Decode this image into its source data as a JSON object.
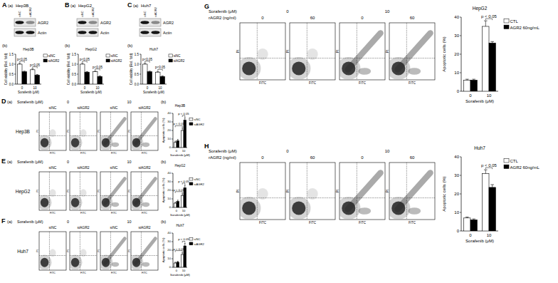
{
  "chart_data": [
    {
      "type": "bar",
      "title": "Hep3B",
      "x_label": "Sorafenib (μM)",
      "y_label": "Cell viability (Rel. fold)",
      "categories": [
        "0",
        "10"
      ],
      "series": [
        {
          "name": "siNC",
          "color": "#ffffff",
          "values": [
            1.0,
            0.72
          ],
          "errors": [
            0.04,
            0.04
          ]
        },
        {
          "name": "siAGR2",
          "color": "#000000",
          "values": [
            0.62,
            0.45
          ],
          "errors": [
            0.03,
            0.03
          ]
        }
      ],
      "ylim": [
        0,
        1.5
      ],
      "yticks": [
        {
          "value": 0,
          "label": "0.0"
        },
        0.5,
        {
          "value": 1,
          "label": "1.0"
        },
        1.5
      ],
      "annotations": [
        {
          "text": "p<0.05",
          "a": [
            "0",
            "siNC"
          ],
          "b": [
            "0",
            "siAGR2"
          ]
        },
        {
          "text": "p<0.05",
          "a": [
            "10",
            "siNC"
          ],
          "b": [
            "10",
            "siAGR2"
          ]
        }
      ]
    },
    {
      "type": "bar",
      "title": "HepG2",
      "x_label": "Sorafenib (μM)",
      "y_label": "Cell viability (Rel. fold)",
      "categories": [
        "0",
        "10"
      ],
      "series": [
        {
          "name": "siNC",
          "color": "#ffffff",
          "values": [
            1.0,
            0.62
          ],
          "errors": [
            0.04,
            0.03
          ]
        },
        {
          "name": "siAGR2",
          "color": "#000000",
          "values": [
            0.6,
            0.38
          ],
          "errors": [
            0.03,
            0.03
          ]
        }
      ],
      "ylim": [
        0,
        1.5
      ],
      "yticks": [
        {
          "value": 0,
          "label": "0.0"
        },
        0.5,
        {
          "value": 1,
          "label": "1.0"
        },
        1.5
      ],
      "annotations": [
        {
          "text": "p<0.05",
          "a": [
            "0",
            "siNC"
          ],
          "b": [
            "0",
            "siAGR2"
          ]
        },
        {
          "text": "p<0.05",
          "a": [
            "10",
            "siNC"
          ],
          "b": [
            "10",
            "siAGR2"
          ]
        }
      ]
    },
    {
      "type": "bar",
      "title": "Huh7",
      "x_label": "Sorafenib (μM)",
      "y_label": "Cell viability (Rel. fold)",
      "categories": [
        "0",
        "10"
      ],
      "series": [
        {
          "name": "siNC",
          "color": "#ffffff",
          "values": [
            1.0,
            0.6
          ],
          "errors": [
            0.04,
            0.03
          ]
        },
        {
          "name": "siAGR2",
          "color": "#000000",
          "values": [
            0.62,
            0.38
          ],
          "errors": [
            0.03,
            0.03
          ]
        }
      ],
      "ylim": [
        0,
        1.5
      ],
      "yticks": [
        {
          "value": 0,
          "label": "0.0"
        },
        0.5,
        {
          "value": 1,
          "label": "1.0"
        },
        1.5
      ],
      "annotations": [
        {
          "text": "p<0.05",
          "a": [
            "0",
            "siNC"
          ],
          "b": [
            "0",
            "siAGR2"
          ]
        },
        {
          "text": "p<0.05",
          "a": [
            "10",
            "siNC"
          ],
          "b": [
            "10",
            "siAGR2"
          ]
        }
      ]
    },
    {
      "type": "bar",
      "title": "Hep3B",
      "x_label": "Sorafenib (μM)",
      "y_label": "Apoptotic cells (%)",
      "categories": [
        "0",
        "10"
      ],
      "series": [
        {
          "name": "siNC",
          "color": "#ffffff",
          "values": [
            6,
            20
          ],
          "errors": [
            1.5,
            3
          ]
        },
        {
          "name": "siAGR2",
          "color": "#000000",
          "values": [
            8,
            32
          ],
          "errors": [
            1.5,
            3
          ]
        }
      ],
      "ylim": [
        0,
        40
      ],
      "yticks": [
        0,
        10,
        20,
        30,
        40
      ],
      "annotations": [
        {
          "text": "p < 0.01",
          "a": [
            "0",
            "siNC"
          ],
          "b": [
            "10",
            "siNC"
          ]
        },
        {
          "text": "p < 0.05",
          "a": [
            "10",
            "siNC"
          ],
          "b": [
            "10",
            "siAGR2"
          ]
        }
      ]
    },
    {
      "type": "bar",
      "title": "HepG2",
      "x_label": "Sorafenib (μM)",
      "y_label": "Apoptotic cells (%)",
      "categories": [
        "0",
        "10"
      ],
      "series": [
        {
          "name": "siNC",
          "color": "#ffffff",
          "values": [
            5,
            14
          ],
          "errors": [
            1,
            2
          ]
        },
        {
          "name": "siAGR2",
          "color": "#000000",
          "values": [
            7,
            23
          ],
          "errors": [
            1.5,
            3
          ]
        }
      ],
      "ylim": [
        0,
        40
      ],
      "yticks": [
        0,
        10,
        20,
        30,
        40
      ],
      "annotations": [
        {
          "text": "p < 0.01",
          "a": [
            "0",
            "siNC"
          ],
          "b": [
            "10",
            "siNC"
          ]
        },
        {
          "text": "p < 0.05",
          "a": [
            "10",
            "siNC"
          ],
          "b": [
            "10",
            "siAGR2"
          ]
        }
      ]
    },
    {
      "type": "bar",
      "title": "Huh7",
      "x_label": "Sorafenib (μM)",
      "y_label": "Apoptotic cells (%)",
      "categories": [
        "0",
        "10"
      ],
      "series": [
        {
          "name": "siNC",
          "color": "#ffffff",
          "values": [
            5,
            15
          ],
          "errors": [
            1,
            2
          ]
        },
        {
          "name": "siAGR2",
          "color": "#000000",
          "values": [
            6,
            25
          ],
          "errors": [
            1,
            3
          ]
        }
      ],
      "ylim": [
        0,
        40
      ],
      "yticks": [
        0,
        10,
        20,
        30,
        40
      ],
      "annotations": [
        {
          "text": "p < 0.01",
          "a": [
            "0",
            "siNC"
          ],
          "b": [
            "10",
            "siNC"
          ]
        },
        {
          "text": "p < 0.05",
          "a": [
            "10",
            "siNC"
          ],
          "b": [
            "10",
            "siAGR2"
          ]
        }
      ]
    },
    {
      "type": "bar",
      "title": "HepG2",
      "x_label": "Sorafenib (μM)",
      "y_label": "Apoptotic cells (%)",
      "categories": [
        "0",
        "10"
      ],
      "series": [
        {
          "name": "CTL",
          "color": "#ffffff",
          "values": [
            6,
            35
          ],
          "errors": [
            0.5,
            3
          ]
        },
        {
          "name": "AGR2 60ng/mL",
          "color": "#000000",
          "values": [
            6,
            26
          ],
          "errors": [
            0.5,
            0.8
          ]
        }
      ],
      "ylim": [
        0,
        40
      ],
      "yticks": [
        0,
        10,
        20,
        30,
        40
      ],
      "annotations": [
        {
          "text": "p < 0.05",
          "a": [
            "10",
            "CTL"
          ],
          "b": [
            "10",
            "AGR2 60ng/mL"
          ]
        }
      ]
    },
    {
      "type": "bar",
      "title": "Huh7",
      "x_label": "Sorafenib (μM)",
      "y_label": "Apoptotic cells (%)",
      "categories": [
        "0",
        "10"
      ],
      "series": [
        {
          "name": "CTL",
          "color": "#ffffff",
          "values": [
            7,
            31
          ],
          "errors": [
            0.5,
            2
          ]
        },
        {
          "name": "AGR2 60ng/mL",
          "color": "#000000",
          "values": [
            6,
            23.5
          ],
          "errors": [
            0.5,
            1.5
          ]
        }
      ],
      "ylim": [
        0,
        40
      ],
      "yticks": [
        0,
        10,
        20,
        30,
        40
      ],
      "annotations": [
        {
          "text": "p < 0.05",
          "a": [
            "10",
            "CTL"
          ],
          "b": [
            "10",
            "AGR2 60ng/mL"
          ]
        }
      ]
    }
  ],
  "figure": {
    "blots": [
      {
        "letter": "A",
        "sub": "(a)",
        "cell_line": "Hep3B",
        "lanes": [
          "siNC",
          "siAGR2"
        ],
        "rows": [
          "AGR2",
          "Actin"
        ],
        "chart_sub": "(b)"
      },
      {
        "letter": "B",
        "sub": "(a)",
        "cell_line": "HepG2",
        "lanes": [
          "siNC",
          "siAGR2"
        ],
        "rows": [
          "AGR2",
          "Actin"
        ],
        "chart_sub": "(b)"
      },
      {
        "letter": "C",
        "sub": "(a)",
        "cell_line": "Huh7",
        "lanes": [
          "siNC",
          "siAGR2"
        ],
        "rows": [
          "AGR2",
          "Actin"
        ],
        "chart_sub": "(b)"
      }
    ],
    "flow_rows": [
      {
        "letter": "D",
        "sub": "(a)",
        "chart_sub": "(b)",
        "header": "Sorafenib (μM)",
        "doses": [
          "0",
          "10"
        ],
        "groups": [
          "siNC",
          "siAGR2",
          "siNC",
          "siAGR2"
        ],
        "cell_line": "Hep3B",
        "y_axis": "PI",
        "x_axis": "FITC"
      },
      {
        "letter": "E",
        "sub": "(a)",
        "chart_sub": "(b)",
        "header": "Sorafenib (μM)",
        "doses": [
          "0",
          "10"
        ],
        "groups": [
          "siNC",
          "siAGR2",
          "siNC",
          "siAGR2"
        ],
        "cell_line": "HepG2",
        "y_axis": "PI",
        "x_axis": "FITC"
      },
      {
        "letter": "F",
        "sub": "(a)",
        "chart_sub": "(b)",
        "header": "Sorafenib (μM)",
        "doses": [
          "0",
          "10"
        ],
        "groups": [
          "siNC",
          "siAGR2",
          "siNC",
          "siAGR2"
        ],
        "cell_line": "Huh7",
        "y_axis": "PI",
        "x_axis": "FITC"
      }
    ],
    "treatment_rows": [
      {
        "letter": "G",
        "header": "Sorafenib (μM)",
        "doses": [
          "0",
          "10"
        ],
        "treatment_label": "rAGR2 (ng/ml)",
        "treatments": [
          "0",
          "60",
          "0",
          "60"
        ],
        "y_axis": "PI",
        "x_axis": "FITC"
      },
      {
        "letter": "H",
        "header": "Sorafenib (μM)",
        "doses": [
          "0",
          "10"
        ],
        "treatment_label": "rAGR2 (ng/ml)",
        "treatments": [
          "0",
          "60",
          "0",
          "60"
        ],
        "y_axis": "PI",
        "x_axis": "FITC"
      }
    ]
  }
}
